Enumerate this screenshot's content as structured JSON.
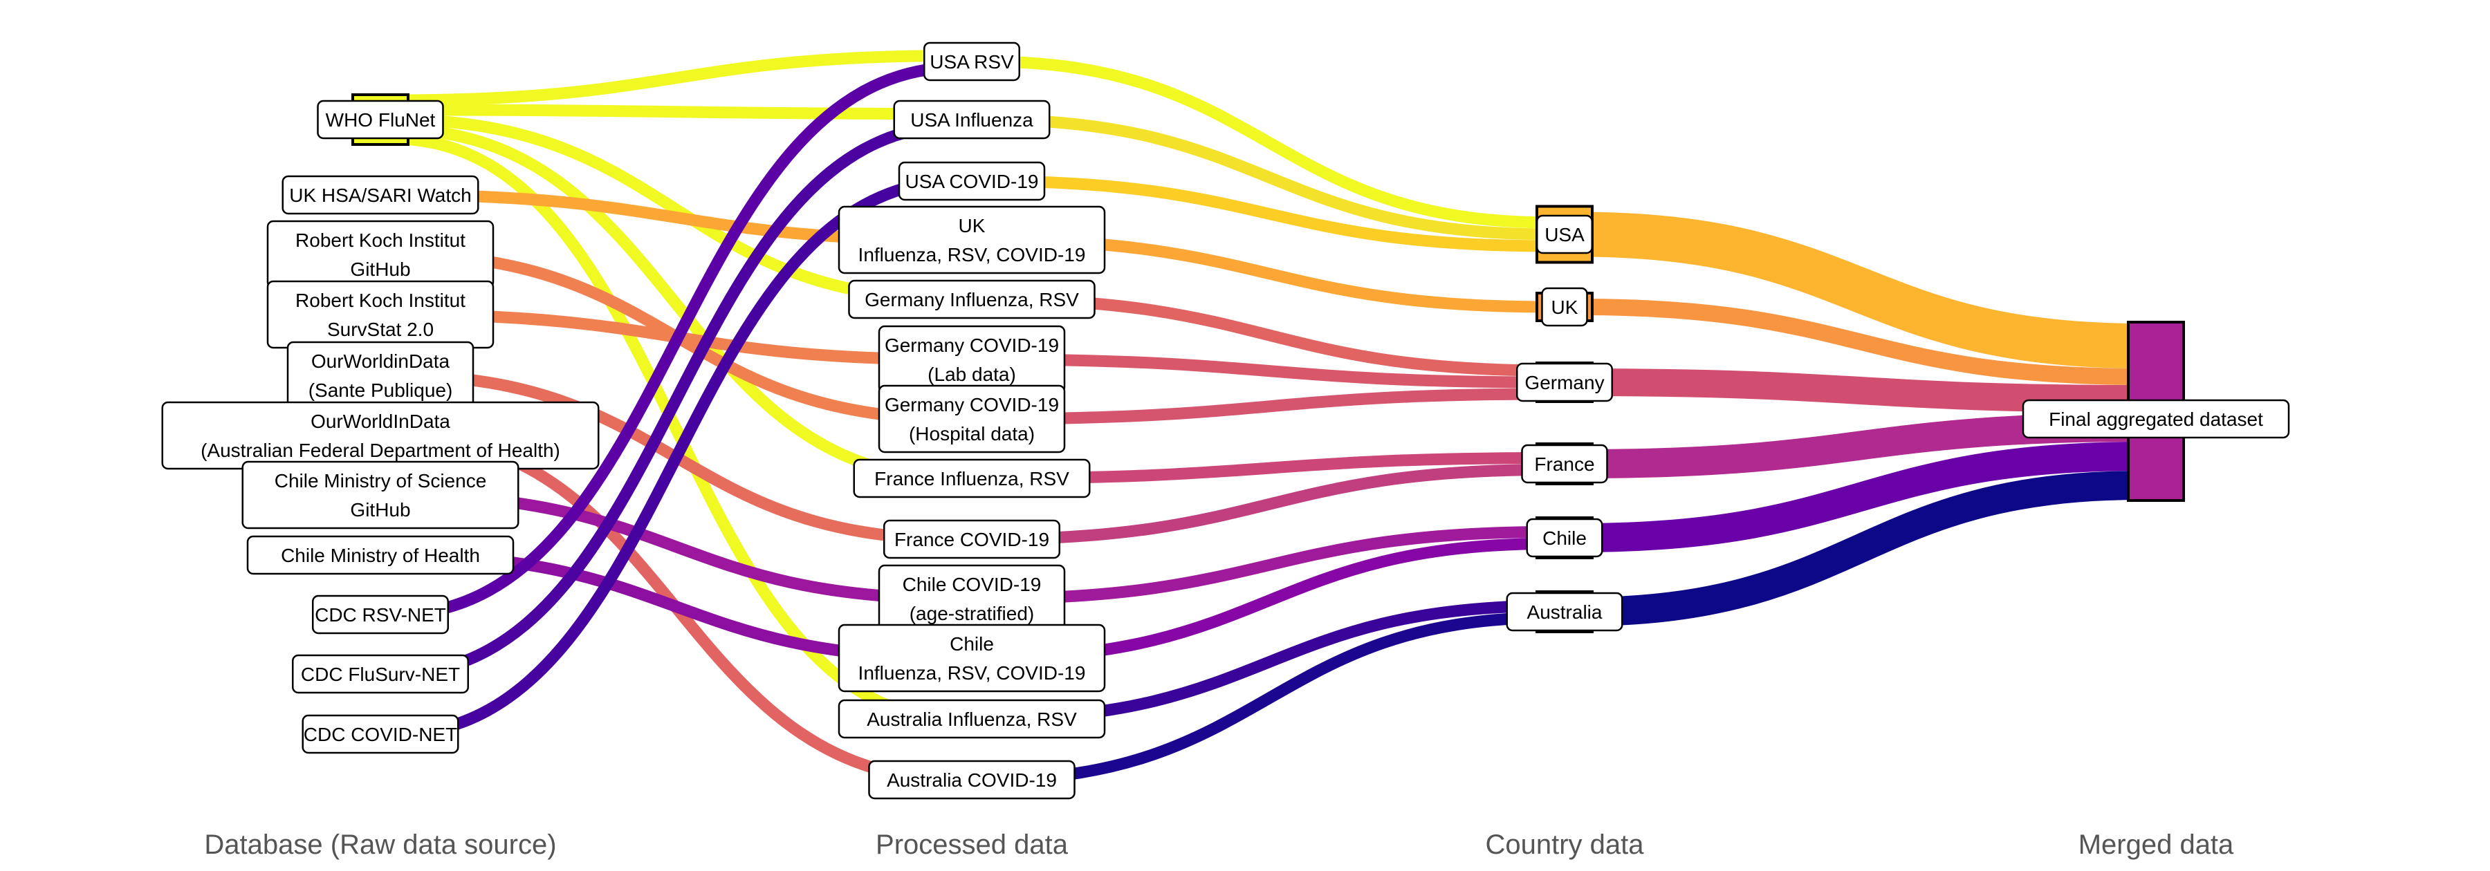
{
  "columns": [
    {
      "key": "source",
      "title": "Database (Raw data source)"
    },
    {
      "key": "processed",
      "title": "Processed data"
    },
    {
      "key": "country",
      "title": "Country data"
    },
    {
      "key": "merged",
      "title": "Merged data"
    }
  ],
  "nodes": [
    {
      "id": "who",
      "column": 0,
      "label": [
        "WHO FluNet"
      ],
      "color": "#f0f921"
    },
    {
      "id": "ukhsa",
      "column": 0,
      "label": [
        "UK HSA/SARI Watch"
      ],
      "color": "#fca636"
    },
    {
      "id": "rkigh",
      "column": 0,
      "label": [
        "Robert Koch Institut",
        "GitHub"
      ],
      "color": "#f0804f"
    },
    {
      "id": "rkiss",
      "column": 0,
      "label": [
        "Robert Koch Institut",
        "SurvStat 2.0"
      ],
      "color": "#f0804f"
    },
    {
      "id": "owidsp",
      "column": 0,
      "label": [
        "OurWorldinData",
        "(Sante Publique)"
      ],
      "color": "#e66c5c"
    },
    {
      "id": "owidau",
      "column": 0,
      "label": [
        "OurWorldInData",
        "(Australian Federal Department of Health)"
      ],
      "color": "#e16462"
    },
    {
      "id": "chilesci",
      "column": 0,
      "label": [
        "Chile Ministry of Science",
        "GitHub"
      ],
      "color": "#9c179e"
    },
    {
      "id": "chileh",
      "column": 0,
      "label": [
        "Chile Ministry of Health"
      ],
      "color": "#8d0fa2"
    },
    {
      "id": "cdcrsv",
      "column": 0,
      "label": [
        "CDC RSV-NET"
      ],
      "color": "#5c01a6"
    },
    {
      "id": "cdcflu",
      "column": 0,
      "label": [
        "CDC FluSurv-NET"
      ],
      "color": "#4c02a1"
    },
    {
      "id": "cdccov",
      "column": 0,
      "label": [
        "CDC COVID-NET"
      ],
      "color": "#46039f"
    },
    {
      "id": "usarsv",
      "column": 1,
      "label": [
        "USA RSV"
      ],
      "color": "#f0f921"
    },
    {
      "id": "usaflu",
      "column": 1,
      "label": [
        "USA Influenza"
      ],
      "color": "#f4e22a"
    },
    {
      "id": "usacov",
      "column": 1,
      "label": [
        "USA COVID-19"
      ],
      "color": "#fcce25"
    },
    {
      "id": "ukall",
      "column": 1,
      "label": [
        "UK",
        "Influenza, RSV, COVID-19"
      ],
      "color": "#fca636"
    },
    {
      "id": "deflu",
      "column": 1,
      "label": [
        "Germany Influenza, RSV"
      ],
      "color": "#e16462"
    },
    {
      "id": "delab",
      "column": 1,
      "label": [
        "Germany COVID-19",
        "(Lab data)"
      ],
      "color": "#d8576b"
    },
    {
      "id": "dehosp",
      "column": 1,
      "label": [
        "Germany COVID-19",
        "(Hospital data)"
      ],
      "color": "#d5546e"
    },
    {
      "id": "frflu",
      "column": 1,
      "label": [
        "France Influenza, RSV"
      ],
      "color": "#cc4778"
    },
    {
      "id": "frcov",
      "column": 1,
      "label": [
        "France COVID-19"
      ],
      "color": "#c23f7f"
    },
    {
      "id": "clcov",
      "column": 1,
      "label": [
        "Chile COVID-19",
        "(age-stratified)"
      ],
      "color": "#a01a9c"
    },
    {
      "id": "clall",
      "column": 1,
      "label": [
        "Chile",
        "Influenza, RSV, COVID-19"
      ],
      "color": "#8606a6"
    },
    {
      "id": "auflu",
      "column": 1,
      "label": [
        "Australia Influenza, RSV"
      ],
      "color": "#3a049a"
    },
    {
      "id": "aucov",
      "column": 1,
      "label": [
        "Australia COVID-19"
      ],
      "color": "#1a068f"
    },
    {
      "id": "usa",
      "column": 2,
      "label": [
        "USA"
      ],
      "color": "#fdb42f"
    },
    {
      "id": "uk",
      "column": 2,
      "label": [
        "UK"
      ],
      "color": "#f89540"
    },
    {
      "id": "germany",
      "column": 2,
      "label": [
        "Germany"
      ],
      "color": "#d24e70"
    },
    {
      "id": "france",
      "column": 2,
      "label": [
        "France"
      ],
      "color": "#b02a90"
    },
    {
      "id": "chile",
      "column": 2,
      "label": [
        "Chile"
      ],
      "color": "#6a00a8"
    },
    {
      "id": "australia",
      "column": 2,
      "label": [
        "Australia"
      ],
      "color": "#0d0887"
    },
    {
      "id": "final",
      "column": 3,
      "label": [
        "Final aggregated dataset"
      ],
      "color": "#a82296"
    }
  ],
  "links": [
    {
      "from": "who",
      "to": "usarsv",
      "color": "#f0f921"
    },
    {
      "from": "who",
      "to": "usaflu",
      "color": "#f0f921"
    },
    {
      "from": "who",
      "to": "deflu",
      "color": "#f0f921"
    },
    {
      "from": "who",
      "to": "frflu",
      "color": "#f0f921"
    },
    {
      "from": "who",
      "to": "auflu",
      "color": "#f0f921"
    },
    {
      "from": "ukhsa",
      "to": "ukall",
      "color": "#fca636"
    },
    {
      "from": "rkigh",
      "to": "dehosp",
      "color": "#f0804f"
    },
    {
      "from": "rkiss",
      "to": "delab",
      "color": "#f0804f"
    },
    {
      "from": "owidsp",
      "to": "frcov",
      "color": "#e66c5c"
    },
    {
      "from": "owidau",
      "to": "aucov",
      "color": "#e16462"
    },
    {
      "from": "chilesci",
      "to": "clcov",
      "color": "#9c179e"
    },
    {
      "from": "chileh",
      "to": "clall",
      "color": "#8d0fa2"
    },
    {
      "from": "cdcrsv",
      "to": "usarsv",
      "color": "#5c01a6"
    },
    {
      "from": "cdcflu",
      "to": "usaflu",
      "color": "#4c02a1"
    },
    {
      "from": "cdccov",
      "to": "usacov",
      "color": "#46039f"
    },
    {
      "from": "usarsv",
      "to": "usa",
      "color": "#f0f921"
    },
    {
      "from": "usaflu",
      "to": "usa",
      "color": "#f4e22a"
    },
    {
      "from": "usacov",
      "to": "usa",
      "color": "#fcce25"
    },
    {
      "from": "ukall",
      "to": "uk",
      "color": "#fca636"
    },
    {
      "from": "deflu",
      "to": "germany",
      "color": "#e16462"
    },
    {
      "from": "delab",
      "to": "germany",
      "color": "#d8576b"
    },
    {
      "from": "dehosp",
      "to": "germany",
      "color": "#d5546e"
    },
    {
      "from": "frflu",
      "to": "france",
      "color": "#cc4778"
    },
    {
      "from": "frcov",
      "to": "france",
      "color": "#c23f7f"
    },
    {
      "from": "clcov",
      "to": "chile",
      "color": "#a01a9c"
    },
    {
      "from": "clall",
      "to": "chile",
      "color": "#8606a6"
    },
    {
      "from": "auflu",
      "to": "australia",
      "color": "#3a049a"
    },
    {
      "from": "aucov",
      "to": "australia",
      "color": "#1a068f"
    },
    {
      "from": "usa",
      "to": "final",
      "color": "#fdb42f"
    },
    {
      "from": "uk",
      "to": "final",
      "color": "#f89540"
    },
    {
      "from": "germany",
      "to": "final",
      "color": "#d24e70"
    },
    {
      "from": "france",
      "to": "final",
      "color": "#b02a90"
    },
    {
      "from": "chile",
      "to": "final",
      "color": "#6a00a8"
    },
    {
      "from": "australia",
      "to": "final",
      "color": "#0d0887"
    }
  ]
}
